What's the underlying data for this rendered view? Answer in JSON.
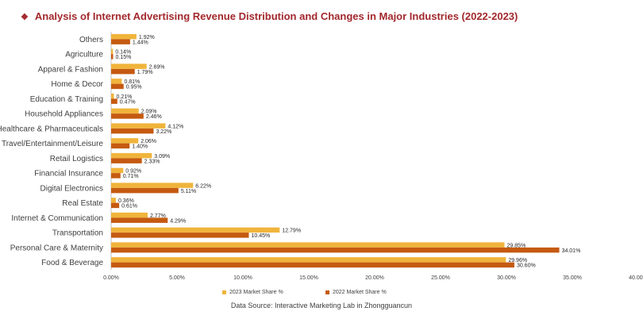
{
  "chart_data": {
    "type": "bar",
    "orientation": "horizontal",
    "title": "Analysis of Internet Advertising Revenue Distribution and Changes in Major Industries (2022-2023)",
    "categories": [
      "Others",
      "Agriculture",
      "Apparel & Fashion",
      "Home & Decor",
      "Education & Training",
      "Household Appliances",
      "Healthcare & Pharmaceuticals",
      "Travel/Entertainment/Leisure",
      "Retail Logistics",
      "Financial Insurance",
      "Digital Electronics",
      "Real Estate",
      "Internet & Communication",
      "Transportation",
      "Personal Care & Maternity",
      "Food & Beverage"
    ],
    "series": [
      {
        "name": "2023 Market Share %",
        "color": "#f0b43c",
        "values": [
          1.92,
          0.14,
          2.69,
          0.81,
          0.21,
          2.09,
          4.12,
          2.06,
          3.09,
          0.92,
          6.22,
          0.36,
          2.77,
          12.79,
          29.85,
          29.96
        ],
        "labels": [
          "1.92%",
          "0.14%",
          "2.69%",
          "0.81%",
          "0.21%",
          "2.09%",
          "4.12%",
          "2.06%",
          "3.09%",
          "0.92%",
          "6.22%",
          "0.36%",
          "2.77%",
          "12.79%",
          "29.85%",
          "29.96%"
        ]
      },
      {
        "name": "2022 Market Share %",
        "color": "#c55a11",
        "values": [
          1.44,
          0.15,
          1.79,
          0.95,
          0.47,
          2.46,
          3.22,
          1.4,
          2.33,
          0.71,
          5.11,
          0.61,
          4.29,
          10.45,
          34.01,
          30.6
        ],
        "labels": [
          "1.44%",
          "0.15%",
          "1.79%",
          "0.95%",
          "0.47%",
          "2.46%",
          "3.22%",
          "1.40%",
          "2.33%",
          "0.71%",
          "5.11%",
          "0.61%",
          "4.29%",
          "10.45%",
          "34.01%",
          "30.60%"
        ]
      }
    ],
    "xlim": [
      0,
      40
    ],
    "xticks": [
      "0.00%",
      "5.00%",
      "10.00%",
      "15.00%",
      "20.00%",
      "25.00%",
      "30.00%",
      "35.00%",
      "40.00%"
    ],
    "legend_position": "bottom",
    "grid": false
  },
  "title_icon": "diamond-icon",
  "title_color": "#a2282d",
  "source": "Data Source:  Interactive Marketing Lab in Zhongguancun"
}
